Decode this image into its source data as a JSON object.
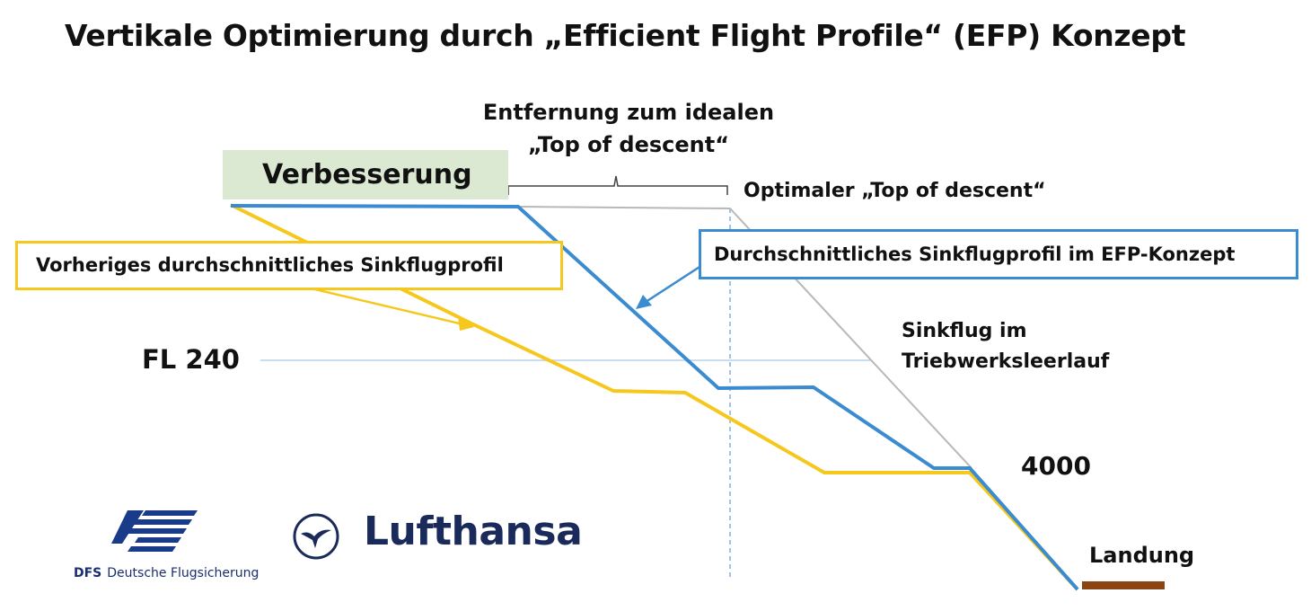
{
  "title": "Vertikale Optimierung durch „Efficient Flight Profile“ (EFP) Konzept",
  "labels": {
    "verbesserung": "Verbesserung",
    "entfernung_line1": "Entfernung zum idealen",
    "entfernung_line2": "„Top of descent“",
    "optimaler_tod": "Optimaler „Top of descent“",
    "vorheriges": "Vorheriges durchschnittliches Sinkflugprofil",
    "durchschnittliches_efp": "Durchschnittliches Sinkflugprofil im EFP-Konzept",
    "sinkflug_line1": "Sinkflug im",
    "sinkflug_line2": "Triebwerksleerlauf",
    "fl240": "FL 240",
    "alt4000": "4000",
    "landung": "Landung"
  },
  "logos": {
    "dfs_abbr": "DFS",
    "dfs_name": "Deutsche Flugsicherung",
    "lufthansa": "Lufthansa"
  },
  "colors": {
    "previous_profile": "#f6c71c",
    "efp_profile": "#3b8bd0",
    "idle_descent": "#b8b8b8",
    "improvement_box": "#dbe9d3",
    "runway": "#8b4513"
  }
}
